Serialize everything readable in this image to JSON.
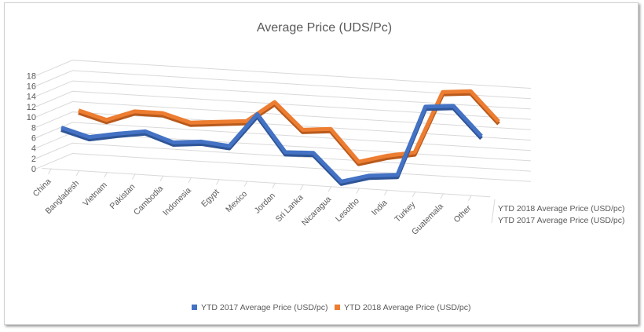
{
  "chart_data": {
    "type": "line",
    "style": "3d-line",
    "title": "Average Price (UDS/Pc)",
    "categories": [
      "China",
      "Bangladesh",
      "Vietnam",
      "Pakistan",
      "Cambodia",
      "Indonesia",
      "Egypt",
      "Mexico",
      "Jordan",
      "Sri Lanka",
      "Nicaragua",
      "Lesotho",
      "India",
      "Turkey",
      "Guatemala",
      "Other"
    ],
    "y_ticks": [
      0,
      2,
      4,
      6,
      8,
      10,
      12,
      14,
      16,
      18
    ],
    "ylim": [
      0,
      18
    ],
    "grid": true,
    "legend_position": "bottom",
    "depth_labels": [
      "YTD 2018 Average Price (USD/pc)",
      "YTD 2017 Average Price (USD/pc)"
    ],
    "series": [
      {
        "name": "YTD 2017 Average Price (USD/pc)",
        "color": "#4472c4",
        "values": [
          7.5,
          6,
          7,
          7.8,
          6,
          6.5,
          6,
          12.5,
          5.5,
          5.7,
          0.5,
          2,
          2.5,
          16,
          16.5,
          11
        ]
      },
      {
        "name": "YTD 2018 Average Price (USD/pc)",
        "color": "#ed7d31",
        "values": [
          9,
          7.5,
          9.5,
          9.5,
          8,
          8.5,
          9,
          13,
          8,
          8.5,
          2.5,
          4,
          5,
          17,
          17.5,
          12
        ]
      }
    ]
  }
}
